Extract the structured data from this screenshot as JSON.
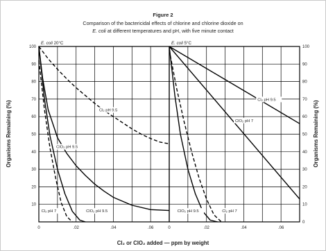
{
  "figure": {
    "label": "Figure 2",
    "title_line1": "Comparison of the bactericidal effects of chlorine and chlorine dioxide on",
    "title_line2_italic": "E. coli",
    "title_line2_rest": " at different temperatures and pH, with five minute contact",
    "xlabel": "Cl₂ or ClO₂ added — ppm by weight",
    "ylabel_left": "Organisms Remaining (%)",
    "ylabel_right": "Organisms Remaining (%)"
  },
  "chart_data": [
    {
      "type": "line",
      "panel_label_italic": "E. coli",
      "panel_label_temp": "20°C",
      "xlim": [
        0,
        0.07
      ],
      "ylim": [
        0,
        100
      ],
      "x_ticks": [
        "0",
        ".02",
        ".04",
        ".06"
      ],
      "y_ticks": [
        "10",
        "20",
        "30",
        "40",
        "50",
        "60",
        "70",
        "80",
        "90",
        "100"
      ],
      "grid": true,
      "series": [
        {
          "name": "Cl₂ pH 9.5",
          "style": "dashed",
          "x": [
            0,
            0.005,
            0.01,
            0.015,
            0.02,
            0.025,
            0.03,
            0.035,
            0.04,
            0.045,
            0.05,
            0.055,
            0.06,
            0.065,
            0.07
          ],
          "y": [
            100,
            93,
            87,
            81.5,
            76.5,
            72,
            67.5,
            63.5,
            60,
            56.5,
            53,
            50,
            47.5,
            45.5,
            44.5
          ]
        },
        {
          "name": "ClO₂ pH 9.5",
          "style": "solid",
          "x": [
            0,
            0.002,
            0.005,
            0.01,
            0.015,
            0.02,
            0.025,
            0.03,
            0.035,
            0.04,
            0.05,
            0.06,
            0.07
          ],
          "y": [
            100,
            82,
            64,
            48,
            39,
            32,
            26.5,
            21.5,
            17.5,
            14,
            9.5,
            7,
            6.5
          ]
        },
        {
          "name": "ClO₂ pH 7",
          "style": "solid",
          "x": [
            0,
            0.003,
            0.006,
            0.01,
            0.014,
            0.018,
            0.022,
            0.025
          ],
          "y": [
            100,
            70,
            49,
            30,
            16,
            6,
            1,
            0
          ]
        },
        {
          "name": "Cl₂ pH 7",
          "style": "dashed",
          "x": [
            0,
            0.003,
            0.006,
            0.009,
            0.012,
            0.015,
            0.018
          ],
          "y": [
            92,
            64,
            42,
            25,
            11,
            3,
            0
          ]
        }
      ],
      "labels": [
        {
          "text": "Cl₂ pH 9.5",
          "x": 0.032,
          "y": 63
        },
        {
          "text": "ClO₂ pH 9.5",
          "x": 0.009,
          "y": 42
        },
        {
          "text": "Cl₂ pH 7",
          "x": 0.001,
          "y": 5.5
        },
        {
          "text": "ClO₂ pH 9.5",
          "x": 0.025,
          "y": 5.5
        }
      ]
    },
    {
      "type": "line",
      "panel_label_italic": "E. coli",
      "panel_label_temp": "5°C",
      "xlim": [
        0,
        0.07
      ],
      "ylim": [
        0,
        100
      ],
      "x_ticks": [
        "0",
        ".02",
        ".04",
        ".06"
      ],
      "y_ticks": [
        "0",
        "10",
        "20",
        "30",
        "40",
        "50",
        "60",
        "70",
        "80",
        "90",
        "100"
      ],
      "grid": true,
      "series": [
        {
          "name": "Cl₂ pH 9.5",
          "style": "solid",
          "x": [
            0,
            0.07
          ],
          "y": [
            100,
            56
          ]
        },
        {
          "name": "ClO₂ pH 7",
          "style": "solid",
          "x": [
            0,
            0.07
          ],
          "y": [
            100,
            13
          ]
        },
        {
          "name": "ClO₂ pH 9.5",
          "style": "solid",
          "x": [
            0,
            0.003,
            0.006,
            0.01,
            0.014,
            0.018,
            0.022,
            0.026
          ],
          "y": [
            100,
            72,
            50,
            30,
            16,
            6,
            1,
            0
          ]
        },
        {
          "name": "Cl₂ pH 7",
          "style": "dashed",
          "x": [
            0,
            0.004,
            0.008,
            0.012,
            0.016,
            0.02,
            0.024,
            0.028
          ],
          "y": [
            98,
            76,
            57,
            40,
            25,
            13,
            4,
            0
          ]
        }
      ],
      "labels": [
        {
          "text": "Cl₂ pH 9.5",
          "x": 0.047,
          "y": 69
        },
        {
          "text": "ClO₂ pH 7",
          "x": 0.035,
          "y": 57
        },
        {
          "text": "ClO₂ pH 9.5",
          "x": 0.004,
          "y": 5.5
        },
        {
          "text": "Cl₂ pH 7",
          "x": 0.028,
          "y": 5.5
        }
      ]
    }
  ]
}
